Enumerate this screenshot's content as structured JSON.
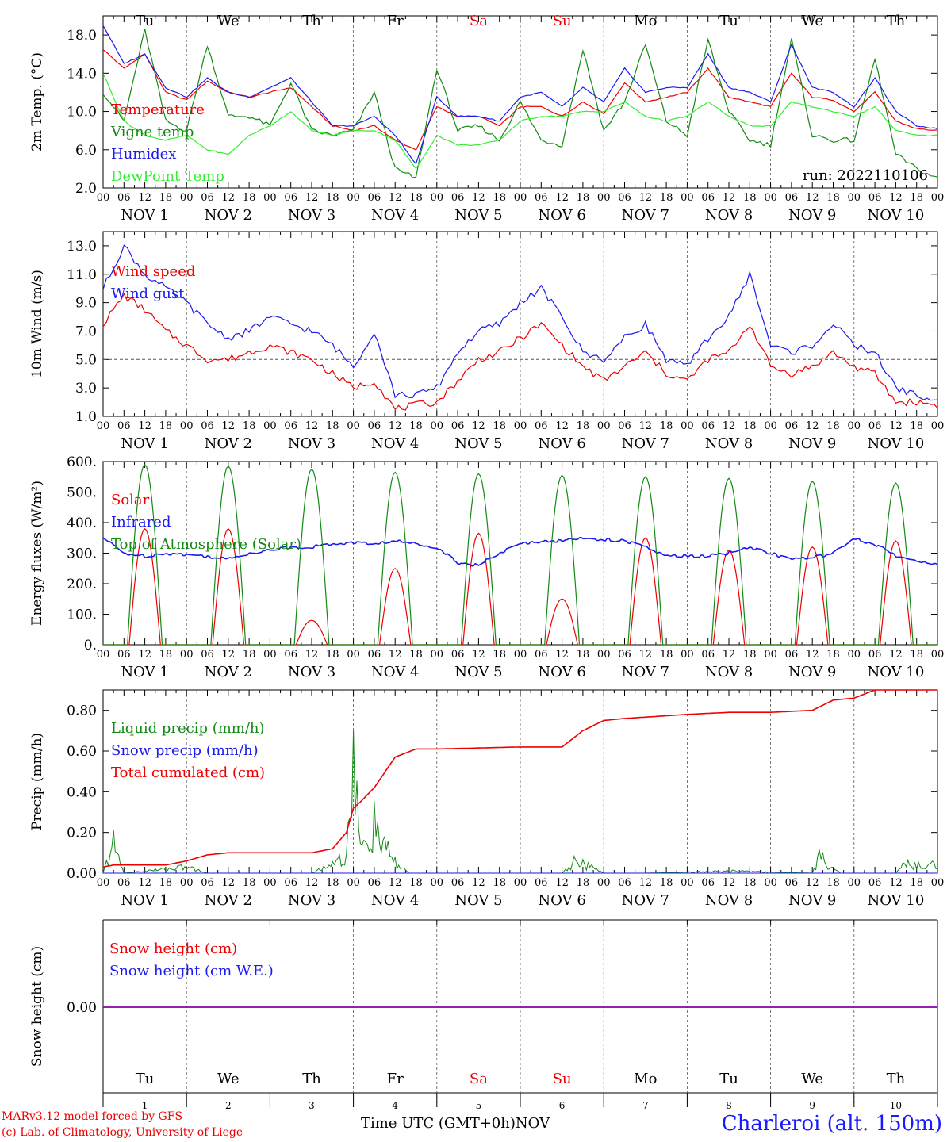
{
  "days": [
    "Tu",
    "We",
    "Th",
    "Fr",
    "Sa",
    "Su",
    "Mo",
    "Tu",
    "We",
    "Th"
  ],
  "weekend_days": [
    "Sa",
    "Su"
  ],
  "day_numbers": [
    "1",
    "2",
    "3",
    "4",
    "5",
    "6",
    "7",
    "8",
    "9",
    "10"
  ],
  "date_labels": [
    "NOV  1",
    "NOV  2",
    "NOV  3",
    "NOV  4",
    "NOV  5",
    "NOV  6",
    "NOV  7",
    "NOV  8",
    "NOV  9",
    "NOV 10"
  ],
  "hour_ticks": [
    "00",
    "06",
    "12",
    "18"
  ],
  "colors": {
    "red": "#ee0000",
    "green": "#138a13",
    "blue": "#1a1aee",
    "lightgreen": "#33ee33",
    "purple": "#8800aa",
    "grid": "#555555"
  },
  "footer": {
    "credit_line1": "MARv3.12 model forced by GFS",
    "credit_line2": "(c) Lab. of Climatology, University of Liege",
    "xlabel": "Time UTC (GMT+0h)",
    "month": "NOV",
    "station": "Charleroi (alt. 150m)"
  },
  "chart_data": [
    {
      "type": "line",
      "ylabel": "2m Temp. (°C)",
      "ylim": [
        2,
        20
      ],
      "yticks": [
        "2.0",
        "6.0",
        "10.0",
        "14.0",
        "18.0"
      ],
      "annotation": "run: 2022110106",
      "x_unit": "hours since Nov 1 00 UTC",
      "series": [
        {
          "name": "Temperature",
          "color": "red",
          "x": [
            0,
            6,
            12,
            18,
            24,
            30,
            36,
            42,
            48,
            54,
            60,
            66,
            72,
            78,
            84,
            90,
            96,
            102,
            108,
            114,
            120,
            126,
            132,
            138,
            144,
            150,
            156,
            162,
            168,
            174,
            180,
            186,
            192,
            198,
            204,
            210,
            216,
            222,
            228,
            234,
            240
          ],
          "values": [
            16.5,
            14.5,
            16.0,
            12.0,
            11.2,
            13.2,
            12.0,
            11.5,
            12.0,
            12.5,
            10.5,
            8.5,
            8.0,
            8.5,
            7.0,
            6.0,
            10.5,
            9.5,
            9.5,
            8.5,
            10.5,
            10.5,
            9.5,
            11.0,
            9.8,
            13.0,
            11.0,
            11.5,
            12.0,
            14.5,
            11.5,
            11.0,
            10.5,
            14.0,
            11.5,
            11.2,
            10.0,
            12.0,
            9.0,
            8.2,
            8.0
          ]
        },
        {
          "name": "Vigne temp",
          "color": "green",
          "x": [
            0,
            6,
            12,
            18,
            24,
            30,
            36,
            42,
            48,
            54,
            60,
            66,
            72,
            78,
            84,
            90,
            96,
            102,
            108,
            114,
            120,
            126,
            132,
            138,
            144,
            150,
            156,
            162,
            168,
            174,
            180,
            186,
            192,
            198,
            204,
            210,
            216,
            222,
            228,
            234,
            240
          ],
          "values": [
            12.0,
            9.0,
            18.5,
            9.0,
            8.0,
            17.0,
            9.5,
            9.5,
            8.5,
            13.0,
            8.0,
            7.5,
            8.0,
            12.0,
            4.0,
            3.0,
            14.5,
            8.0,
            8.5,
            7.0,
            11.0,
            7.0,
            6.5,
            16.5,
            8.0,
            11.0,
            17.0,
            9.0,
            7.5,
            17.5,
            10.0,
            7.0,
            6.5,
            17.5,
            7.5,
            7.0,
            7.0,
            15.5,
            5.5,
            4.0,
            3.0
          ]
        },
        {
          "name": "Humidex",
          "color": "blue",
          "x": [
            0,
            6,
            12,
            18,
            24,
            30,
            36,
            42,
            48,
            54,
            60,
            66,
            72,
            78,
            84,
            90,
            96,
            102,
            108,
            114,
            120,
            126,
            132,
            138,
            144,
            150,
            156,
            162,
            168,
            174,
            180,
            186,
            192,
            198,
            204,
            210,
            216,
            222,
            228,
            234,
            240
          ],
          "values": [
            19.0,
            15.0,
            16.0,
            12.5,
            11.5,
            13.5,
            12.0,
            11.5,
            12.5,
            13.5,
            11.0,
            8.5,
            8.5,
            9.5,
            7.5,
            4.5,
            11.5,
            9.5,
            9.5,
            9.0,
            11.5,
            12.0,
            10.5,
            12.5,
            11.0,
            14.5,
            12.0,
            12.5,
            12.5,
            16.0,
            12.5,
            12.0,
            11.0,
            17.0,
            12.5,
            12.0,
            10.5,
            13.5,
            10.0,
            8.5,
            8.2
          ]
        },
        {
          "name": "DewPoint Temp",
          "color": "lightgreen",
          "x": [
            0,
            6,
            12,
            18,
            24,
            30,
            36,
            42,
            48,
            54,
            60,
            66,
            72,
            78,
            84,
            90,
            96,
            102,
            108,
            114,
            120,
            126,
            132,
            138,
            144,
            150,
            156,
            162,
            168,
            174,
            180,
            186,
            192,
            198,
            204,
            210,
            216,
            222,
            228,
            234,
            240
          ],
          "values": [
            14.0,
            9.0,
            7.5,
            7.0,
            7.5,
            6.0,
            5.5,
            7.5,
            8.5,
            10.0,
            8.0,
            7.5,
            8.0,
            8.0,
            7.0,
            4.0,
            7.5,
            6.5,
            6.5,
            7.0,
            9.0,
            9.5,
            9.5,
            10.0,
            10.0,
            11.0,
            9.5,
            9.0,
            9.5,
            11.0,
            9.5,
            8.5,
            8.5,
            11.0,
            10.5,
            10.0,
            9.5,
            10.5,
            8.0,
            7.5,
            7.5
          ]
        }
      ]
    },
    {
      "type": "line",
      "ylabel": "10m Wind (m/s)",
      "ylim": [
        1,
        14
      ],
      "yticks": [
        "1.0",
        "3.0",
        "5.0",
        "7.0",
        "9.0",
        "11.0",
        "13.0"
      ],
      "reference_line": 5,
      "series": [
        {
          "name": "Wind speed",
          "color": "red",
          "x": [
            0,
            6,
            12,
            18,
            24,
            30,
            36,
            42,
            48,
            54,
            60,
            66,
            72,
            78,
            84,
            90,
            96,
            102,
            108,
            114,
            120,
            126,
            132,
            138,
            144,
            150,
            156,
            162,
            168,
            174,
            180,
            186,
            192,
            198,
            204,
            210,
            216,
            222,
            228,
            234,
            240
          ],
          "values": [
            7.5,
            9.5,
            8.5,
            7.0,
            6.0,
            5.0,
            5.0,
            5.5,
            6.0,
            5.5,
            5.0,
            4.0,
            3.0,
            3.5,
            1.5,
            1.8,
            2.0,
            3.5,
            5.0,
            5.5,
            6.5,
            7.5,
            6.0,
            4.5,
            3.5,
            4.5,
            5.5,
            4.0,
            3.5,
            5.0,
            5.5,
            7.5,
            4.5,
            4.0,
            4.5,
            5.5,
            4.5,
            4.0,
            2.0,
            2.0,
            1.8
          ]
        },
        {
          "name": "Wind gust",
          "color": "blue",
          "x": [
            0,
            6,
            12,
            18,
            24,
            30,
            36,
            42,
            48,
            54,
            60,
            66,
            72,
            78,
            84,
            90,
            96,
            102,
            108,
            114,
            120,
            126,
            132,
            138,
            144,
            150,
            156,
            162,
            168,
            174,
            180,
            186,
            192,
            198,
            204,
            210,
            216,
            222,
            228,
            234,
            240
          ],
          "values": [
            10.0,
            13.0,
            11.0,
            10.0,
            9.0,
            7.5,
            6.5,
            7.0,
            8.0,
            7.5,
            7.0,
            6.0,
            4.5,
            7.0,
            2.5,
            2.5,
            3.0,
            5.5,
            7.0,
            7.5,
            9.0,
            10.0,
            8.0,
            5.5,
            5.0,
            6.5,
            7.5,
            5.0,
            4.5,
            6.5,
            8.0,
            11.0,
            6.0,
            5.5,
            6.0,
            7.5,
            6.0,
            5.5,
            3.0,
            2.5,
            2.0
          ]
        }
      ]
    },
    {
      "type": "line",
      "ylabel": "Energy fluxes (W/m²)",
      "ylim": [
        0,
        600
      ],
      "yticks": [
        "0.",
        "100.",
        "200.",
        "300.",
        "400.",
        "500.",
        "600."
      ],
      "series": [
        {
          "name": "Solar",
          "color": "red",
          "peak_hour": 12,
          "daily_peaks": [
            380,
            380,
            80,
            250,
            365,
            150,
            350,
            310,
            320,
            340
          ]
        },
        {
          "name": "Infrared",
          "color": "blue",
          "x": [
            0,
            6,
            12,
            18,
            24,
            30,
            36,
            42,
            48,
            54,
            60,
            66,
            72,
            78,
            84,
            90,
            96,
            102,
            108,
            114,
            120,
            126,
            132,
            138,
            144,
            150,
            156,
            162,
            168,
            174,
            180,
            186,
            192,
            198,
            204,
            210,
            216,
            222,
            228,
            234,
            240
          ],
          "values": [
            350,
            300,
            290,
            300,
            295,
            290,
            280,
            300,
            310,
            320,
            320,
            330,
            335,
            330,
            340,
            330,
            320,
            270,
            260,
            300,
            330,
            340,
            340,
            350,
            345,
            340,
            320,
            290,
            290,
            290,
            300,
            320,
            300,
            280,
            285,
            300,
            345,
            330,
            290,
            275,
            265
          ]
        },
        {
          "name": "Top of Atmosphere (Solar)",
          "color": "green",
          "peak_hour": 12,
          "daily_peaks": [
            590,
            585,
            575,
            565,
            560,
            555,
            550,
            545,
            535,
            530
          ]
        }
      ]
    },
    {
      "type": "line",
      "ylabel": "Precip (mm/h)",
      "ylim": [
        0,
        0.9
      ],
      "yticks": [
        "0.00",
        "0.20",
        "0.40",
        "0.60",
        "0.80"
      ],
      "series": [
        {
          "name": "Liquid precip (mm/h)",
          "color": "green",
          "x": [
            0,
            3,
            6,
            24,
            30,
            60,
            66,
            70,
            72,
            74,
            78,
            80,
            84,
            88,
            96,
            132,
            136,
            144,
            156,
            180,
            204,
            206,
            212,
            228,
            230
          ],
          "values": [
            0,
            0.14,
            0,
            0.03,
            0,
            0,
            0.05,
            0.08,
            0.56,
            0.1,
            0.22,
            0.15,
            0.05,
            0,
            0,
            0,
            0.06,
            0,
            0,
            0.01,
            0,
            0.08,
            0,
            0,
            0.04
          ]
        },
        {
          "name": "Snow precip (mm/h)",
          "color": "blue",
          "x": [
            0,
            240
          ],
          "values": [
            0,
            0
          ]
        },
        {
          "name": "Total cumulated (cm)",
          "color": "red",
          "x": [
            0,
            3,
            18,
            24,
            30,
            36,
            60,
            66,
            70,
            72,
            74,
            78,
            84,
            90,
            96,
            120,
            132,
            138,
            144,
            150,
            168,
            180,
            192,
            204,
            210,
            216,
            222,
            228,
            240
          ],
          "values": [
            0.03,
            0.04,
            0.04,
            0.06,
            0.09,
            0.1,
            0.1,
            0.12,
            0.2,
            0.32,
            0.35,
            0.42,
            0.57,
            0.61,
            0.61,
            0.62,
            0.62,
            0.7,
            0.75,
            0.76,
            0.78,
            0.79,
            0.79,
            0.8,
            0.85,
            0.86,
            0.9,
            0.9,
            0.9
          ]
        }
      ]
    },
    {
      "type": "line",
      "ylabel": "Snow height (cm)",
      "yticks": [
        "0.00"
      ],
      "series": [
        {
          "name": "Snow height (cm)",
          "color": "red",
          "x": [
            0,
            240
          ],
          "values": [
            0,
            0
          ]
        },
        {
          "name": "Snow height (cm W.E.)",
          "color": "blue",
          "x": [
            0,
            240
          ],
          "values": [
            0,
            0
          ]
        }
      ]
    }
  ]
}
